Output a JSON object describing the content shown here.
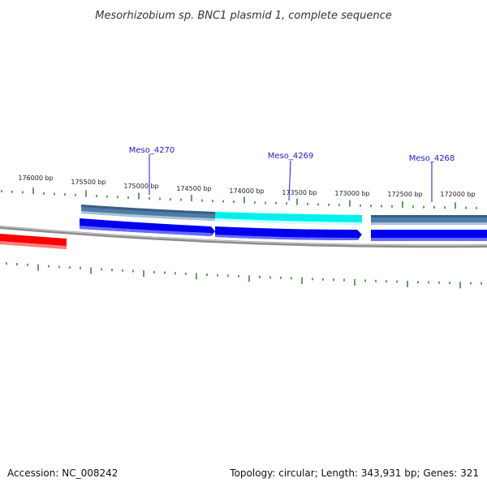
{
  "title": "Mesorhizobium sp. BNC1 plasmid 1, complete sequence",
  "accession_label": "Accession: NC_008242",
  "stats_label": "Topology: circular; Length: 343,931 bp; Genes: 321",
  "colors": {
    "tick": "#1a7a1a",
    "backbone": "#8c8c8c",
    "gene_blue": "#0000ee",
    "gene_steel": "#4f7ca6",
    "gene_cyan": "#00f0f0",
    "gene_red": "#ff0000",
    "label": "#1a1acc"
  },
  "ruler": {
    "labels": [
      "176000 bp",
      "175500 bp",
      "175000 bp",
      "174500 bp",
      "174000 bp",
      "173500 bp",
      "173000 bp",
      "172500 bp",
      "172000 bp"
    ]
  },
  "genes": [
    {
      "name": "Meso_4270",
      "strand": "+",
      "color": "steel"
    },
    {
      "name": "Meso_4269",
      "strand": "+",
      "color": "cyan"
    },
    {
      "name": "Meso_4268",
      "strand": "+",
      "color": "steel"
    }
  ]
}
